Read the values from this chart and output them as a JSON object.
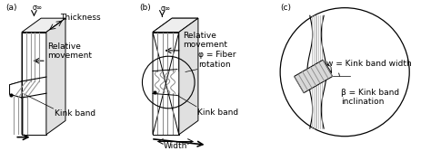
{
  "bg_color": "#ffffff",
  "line_color": "#000000",
  "gray_dark": "#666666",
  "gray_mid": "#999999",
  "gray_light": "#cccccc",
  "label_a": "(a)",
  "label_b": "(b)",
  "label_c": "(c)",
  "thickness_label": "Thickness",
  "sigma_label": "σ∞",
  "rel_movement": "Relative\nmovement",
  "kink_band": "Kink band",
  "width_label": "Width",
  "phi_label": "φ = Fiber\nrotation",
  "w_label": "w = Kink band width",
  "beta_label": "β = Kink band\ninclination",
  "fontsize": 6.5
}
